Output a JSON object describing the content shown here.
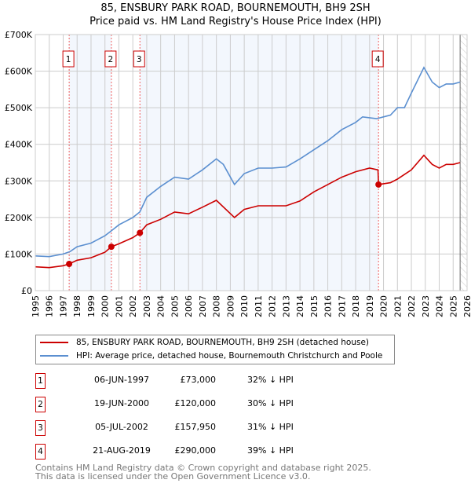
{
  "title": "85, ENSBURY PARK ROAD, BOURNEMOUTH, BH9 2SH",
  "subtitle": "Price paid vs. HM Land Registry's House Price Index (HPI)",
  "chart_data": {
    "type": "line",
    "xlim": [
      1995,
      2026
    ],
    "ylim": [
      0,
      700000
    ],
    "x_ticks": [
      "1995",
      "1996",
      "1997",
      "1998",
      "1999",
      "2000",
      "2001",
      "2002",
      "2003",
      "2004",
      "2005",
      "2006",
      "2007",
      "2008",
      "2009",
      "2010",
      "2011",
      "2012",
      "2013",
      "2014",
      "2015",
      "2016",
      "2017",
      "2018",
      "2019",
      "2020",
      "2021",
      "2022",
      "2023",
      "2024",
      "2025",
      "2026"
    ],
    "y_ticks": [
      {
        "v": 0,
        "label": "£0"
      },
      {
        "v": 100000,
        "label": "£100K"
      },
      {
        "v": 200000,
        "label": "£200K"
      },
      {
        "v": 300000,
        "label": "£300K"
      },
      {
        "v": 400000,
        "label": "£400K"
      },
      {
        "v": 500000,
        "label": "£500K"
      },
      {
        "v": 600000,
        "label": "£600K"
      },
      {
        "v": 700000,
        "label": "£700K"
      }
    ],
    "series": [
      {
        "name": "85, ENSBURY PARK ROAD, BOURNEMOUTH, BH9 2SH (detached house)",
        "color": "#cc0000",
        "x": [
          1995,
          1996,
          1997,
          1997.43,
          1998,
          1999,
          2000,
          2000.46,
          2001,
          2002,
          2002.51,
          2003,
          2004,
          2005,
          2006,
          2007,
          2008,
          2009.3,
          2010,
          2011,
          2012,
          2013,
          2014,
          2015,
          2016,
          2017,
          2018,
          2019,
          2019.6,
          2019.64,
          2020.5,
          2021,
          2022,
          2022.9,
          2023.5,
          2024,
          2024.5,
          2025,
          2025.5
        ],
        "y": [
          65000,
          63000,
          68000,
          73000,
          83000,
          90000,
          105000,
          120000,
          128000,
          145000,
          157950,
          180000,
          195000,
          215000,
          210000,
          228000,
          247000,
          200000,
          222000,
          232000,
          232000,
          232000,
          245000,
          270000,
          290000,
          310000,
          325000,
          335000,
          330000,
          290000,
          295000,
          305000,
          330000,
          370000,
          345000,
          335000,
          345000,
          345000,
          350000
        ]
      },
      {
        "name": "HPI: Average price, detached house, Bournemouth Christchurch and Poole",
        "color": "#5b8fd0",
        "x": [
          1995,
          1996,
          1997,
          1997.5,
          1998,
          1999,
          2000,
          2000.5,
          2001,
          2002,
          2002.5,
          2003,
          2004,
          2005,
          2006,
          2007,
          2008,
          2008.5,
          2009.3,
          2010,
          2011,
          2012,
          2013,
          2014,
          2015,
          2016,
          2017,
          2018,
          2018.5,
          2019.5,
          2020,
          2020.5,
          2021,
          2021.5,
          2022,
          2022.9,
          2023.5,
          2024,
          2024.5,
          2025,
          2025.5
        ],
        "y": [
          95000,
          93000,
          100000,
          107000,
          120000,
          130000,
          150000,
          165000,
          180000,
          200000,
          215000,
          255000,
          285000,
          310000,
          305000,
          330000,
          360000,
          345000,
          290000,
          320000,
          335000,
          335000,
          338000,
          360000,
          385000,
          410000,
          440000,
          460000,
          475000,
          470000,
          475000,
          480000,
          500000,
          500000,
          540000,
          610000,
          570000,
          555000,
          565000,
          565000,
          570000
        ]
      }
    ],
    "sales": [
      {
        "label": "1",
        "x": 1997.43,
        "price": 73000
      },
      {
        "label": "2",
        "x": 2000.46,
        "price": 120000
      },
      {
        "label": "3",
        "x": 2002.51,
        "price": 157950
      },
      {
        "label": "4",
        "x": 2019.64,
        "price": 290000
      }
    ],
    "shaded_ranges": [
      [
        1997.43,
        2000.46
      ],
      [
        2002.51,
        2019.64
      ]
    ],
    "forecast_from": 2025.5
  },
  "legend": {
    "red": "85, ENSBURY PARK ROAD, BOURNEMOUTH, BH9 2SH (detached house)",
    "blue": "HPI: Average price, detached house, Bournemouth Christchurch and Poole"
  },
  "transactions": [
    {
      "num": "1",
      "date": "06-JUN-1997",
      "price": "£73,000",
      "hpi": "32% ↓ HPI"
    },
    {
      "num": "2",
      "date": "19-JUN-2000",
      "price": "£120,000",
      "hpi": "30% ↓ HPI"
    },
    {
      "num": "3",
      "date": "05-JUL-2002",
      "price": "£157,950",
      "hpi": "31% ↓ HPI"
    },
    {
      "num": "4",
      "date": "21-AUG-2019",
      "price": "£290,000",
      "hpi": "39% ↓ HPI"
    }
  ],
  "footer": {
    "line1": "Contains HM Land Registry data © Crown copyright and database right 2025.",
    "line2": "This data is licensed under the Open Government Licence v3.0."
  }
}
